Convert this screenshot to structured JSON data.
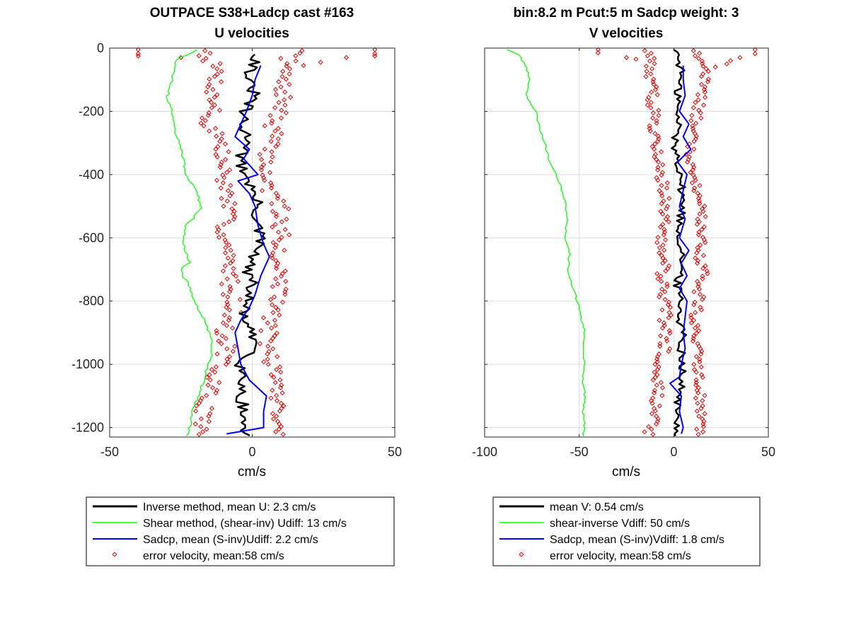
{
  "chart_data": [
    {
      "type": "line",
      "title": "OUTPACE S38+Ladcp cast #163",
      "subtitle": "U velocities",
      "xlabel": "cm/s",
      "ylabel": "",
      "xlim": [
        -50,
        50
      ],
      "ylim": [
        -1230,
        0
      ],
      "xticks": [
        -50,
        0,
        50
      ],
      "xtick_labels": [
        "-50",
        "0",
        "50"
      ],
      "yticks": [
        0,
        -200,
        -400,
        -600,
        -800,
        -1000,
        -1200
      ],
      "ytick_labels": [
        "0",
        "-200",
        "-400",
        "-600",
        "-800",
        "-1000",
        "-1200"
      ],
      "grid": true,
      "legend_position": "below",
      "legend": [
        "Inverse method, mean U:  2.3 cm/s",
        "Shear method, (shear-inv)  Udiff:  13 cm/s",
        "Sadcp, mean (S-inv)Udiff: 2.2 cm/s",
        "error velocity, mean:58 cm/s"
      ],
      "colors": {
        "inverse": "#000000",
        "shear": "#00ff00",
        "sadcp": "#0000ff",
        "error": "#dd0000"
      },
      "series": [
        {
          "kind": "inverse",
          "depth": [
            -20,
            -50,
            -100,
            -150,
            -200,
            -250,
            -300,
            -350,
            -400,
            -450,
            -500,
            -550,
            -600,
            -650,
            -700,
            -750,
            -800,
            -850,
            -900,
            -950,
            -1000,
            -1050,
            -1100,
            -1150,
            -1200,
            -1230
          ],
          "values": [
            2,
            1,
            -2,
            1,
            -3,
            -4,
            0,
            -5,
            -2,
            0,
            2,
            1,
            3,
            1,
            -2,
            0,
            -2,
            -3,
            -1,
            2,
            -4,
            -3,
            -4,
            -3,
            -3,
            -2
          ]
        },
        {
          "kind": "shear",
          "depth": [
            -5,
            -40,
            -100,
            -160,
            -200,
            -260,
            -320,
            -400,
            -460,
            -510,
            -560,
            -620,
            -680,
            -700,
            -740,
            -800,
            -860,
            -920,
            -960,
            -1020,
            -1080,
            -1150,
            -1200,
            -1230
          ],
          "values": [
            -19,
            -27,
            -28,
            -30,
            -28,
            -27,
            -25,
            -23,
            -19,
            -18,
            -23,
            -24,
            -22,
            -25,
            -23,
            -20,
            -17,
            -14,
            -14,
            -16,
            -18,
            -21,
            -22,
            -23
          ]
        },
        {
          "kind": "sadcp",
          "depth": [
            -55,
            -100,
            -150,
            -200,
            -240,
            -280,
            -320,
            -350,
            -400,
            -420,
            -460,
            -500,
            -560,
            -620,
            -660,
            -720,
            -780,
            -820,
            -860,
            -900,
            -950,
            -1000,
            -1050,
            -1100,
            -1150,
            -1200,
            -1220
          ],
          "values": [
            3,
            1,
            0,
            -2,
            -4,
            -6,
            -1,
            -3,
            2,
            -5,
            -1,
            1,
            2,
            4,
            6,
            3,
            1,
            -1,
            -4,
            -6,
            -5,
            -4,
            -1,
            5,
            4,
            4,
            -9
          ]
        }
      ],
      "error_velocity": {
        "depth": [
          -10,
          -25,
          -50,
          -80,
          -110,
          -150,
          -190,
          -230,
          -270,
          -310,
          -350,
          -390,
          -430,
          -470,
          -510,
          -550,
          -590,
          -630,
          -670,
          -710,
          -750,
          -790,
          -830,
          -870,
          -910,
          -950,
          -990,
          -1030,
          -1070,
          -1110,
          -1150,
          -1190,
          -1220
        ],
        "low": [
          -15,
          -16,
          -14,
          -12,
          -13,
          -14,
          -13,
          -17,
          -12,
          -11,
          -11,
          -10,
          -10,
          -8,
          -9,
          -9,
          -10,
          -9,
          -9,
          -7,
          -8,
          -7,
          -6,
          -9,
          -11,
          -8,
          -11,
          -15,
          -13,
          -17,
          -17,
          -17,
          -19
        ],
        "high": [
          15,
          13,
          12,
          11,
          10,
          11,
          10,
          7,
          8,
          6,
          5,
          5,
          5,
          7,
          10,
          10,
          10,
          10,
          9,
          10,
          10,
          8,
          8,
          6,
          6,
          5,
          7,
          8,
          9,
          9,
          9,
          10,
          11
        ],
        "outliers": [
          [
            -40,
            -5
          ],
          [
            -40,
            -18
          ],
          [
            -40,
            -25
          ],
          [
            43,
            -5
          ],
          [
            43,
            -18
          ],
          [
            43,
            -25
          ],
          [
            33,
            -30
          ],
          [
            -25,
            -30
          ],
          [
            24,
            -45
          ],
          [
            18,
            -55
          ]
        ]
      }
    },
    {
      "type": "line",
      "title": "bin:8.2 m  Pcut:5 m  Sadcp weight: 3",
      "subtitle": "V velocities",
      "xlabel": "cm/s",
      "ylabel": "",
      "xlim": [
        -100,
        50
      ],
      "ylim": [
        -1230,
        0
      ],
      "xticks": [
        -100,
        -50,
        0,
        50
      ],
      "xtick_labels": [
        "-100",
        "-50",
        "0",
        "50"
      ],
      "yticks": [
        0,
        -200,
        -400,
        -600,
        -800,
        -1000,
        -1200
      ],
      "grid": true,
      "legend_position": "below",
      "legend": [
        "mean V:  0.54 cm/s",
        "shear-inverse Vdiff:  50 cm/s",
        "Sadcp, mean (S-inv)Vdiff: 1.8 cm/s",
        "error velocity, mean:58 cm/s"
      ],
      "colors": {
        "inverse": "#000000",
        "shear": "#00ff00",
        "sadcp": "#0000ff",
        "error": "#dd0000"
      },
      "series": [
        {
          "kind": "inverse",
          "depth": [
            -5,
            -40,
            -80,
            -120,
            -160,
            -200,
            -250,
            -300,
            -350,
            -400,
            -450,
            -500,
            -550,
            -600,
            -650,
            -700,
            -750,
            -800,
            -850,
            -900,
            -950,
            -1000,
            -1050,
            -1100,
            -1150,
            -1200,
            -1230
          ],
          "values": [
            1,
            3,
            4,
            2,
            3,
            1,
            3,
            0,
            2,
            4,
            4,
            5,
            3,
            3,
            5,
            3,
            2,
            4,
            3,
            5,
            4,
            5,
            4,
            3,
            1,
            2,
            2
          ]
        },
        {
          "kind": "sadcp",
          "depth": [
            -55,
            -100,
            -150,
            -200,
            -240,
            -280,
            -320,
            -360,
            -400,
            -450,
            -500,
            -540,
            -600,
            -640,
            -680,
            -720,
            -760,
            -800,
            -850,
            -900,
            -950,
            -1000,
            -1040,
            -1060,
            -1100,
            -1150,
            -1200,
            -1220
          ],
          "values": [
            5,
            5,
            6,
            3,
            8,
            5,
            9,
            2,
            7,
            5,
            3,
            6,
            3,
            8,
            4,
            7,
            3,
            7,
            6,
            5,
            6,
            4,
            3,
            -2,
            4,
            3,
            5,
            4
          ]
        },
        {
          "kind": "shear",
          "depth": [
            -5,
            -20,
            -60,
            -100,
            -150,
            -200,
            -250,
            -300,
            -350,
            -400,
            -450,
            -500,
            -550,
            -600,
            -650,
            -700,
            -750,
            -800,
            -850,
            -900,
            -950,
            -1000,
            -1050,
            -1100,
            -1150,
            -1200,
            -1230
          ],
          "values": [
            -88,
            -82,
            -78,
            -76,
            -78,
            -73,
            -71,
            -68,
            -66,
            -62,
            -59,
            -57,
            -56,
            -58,
            -55,
            -56,
            -54,
            -51,
            -49,
            -47,
            -48,
            -47,
            -48,
            -47,
            -48,
            -47,
            -48
          ]
        }
      ],
      "error_velocity": {
        "depth": [
          -10,
          -25,
          -50,
          -80,
          -110,
          -150,
          -190,
          -230,
          -270,
          -310,
          -350,
          -390,
          -430,
          -470,
          -510,
          -550,
          -590,
          -630,
          -670,
          -710,
          -750,
          -790,
          -830,
          -870,
          -910,
          -950,
          -990,
          -1030,
          -1070,
          -1110,
          -1150,
          -1190,
          -1220
        ],
        "low": [
          -14,
          -13,
          -12,
          -13,
          -12,
          -11,
          -11,
          -10,
          -10,
          -9,
          -7,
          -7,
          -6,
          -5,
          -6,
          -5,
          -7,
          -7,
          -5,
          -6,
          -5,
          -6,
          -4,
          -5,
          -4,
          -5,
          -7,
          -8,
          -8,
          -9,
          -10,
          -12,
          -13
        ],
        "high": [
          13,
          12,
          14,
          16,
          15,
          14,
          13,
          12,
          12,
          10,
          9,
          10,
          11,
          12,
          14,
          14,
          13,
          14,
          14,
          15,
          14,
          13,
          12,
          12,
          12,
          13,
          13,
          13,
          13,
          14,
          14,
          15,
          15
        ],
        "outliers": [
          [
            -40,
            -5
          ],
          [
            -40,
            -15
          ],
          [
            43,
            -5
          ],
          [
            43,
            -18
          ],
          [
            35,
            -30
          ],
          [
            30,
            -40
          ],
          [
            -20,
            -35
          ],
          [
            -25,
            -30
          ],
          [
            28,
            -50
          ],
          [
            22,
            -60
          ]
        ]
      }
    }
  ]
}
